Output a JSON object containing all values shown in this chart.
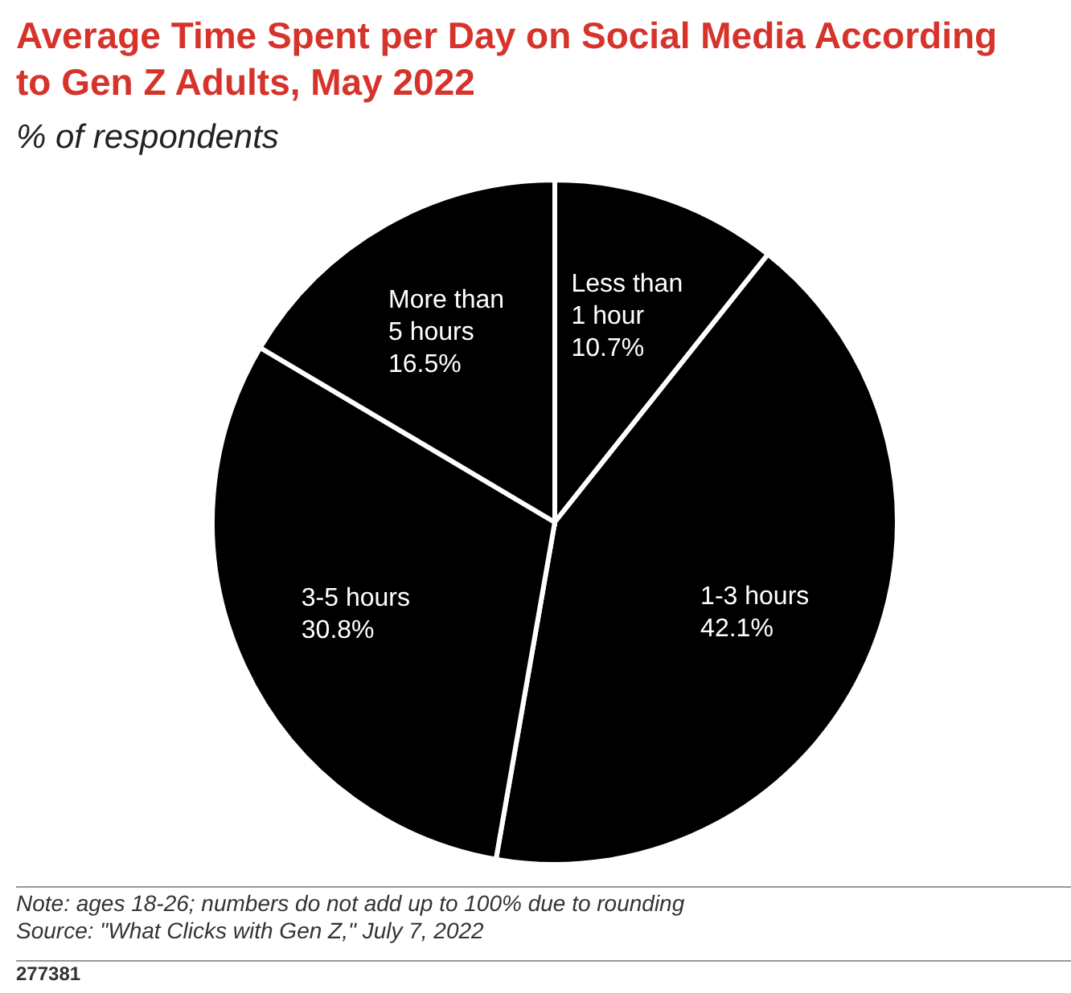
{
  "chart_data": {
    "type": "pie",
    "title": "Average Time Spent per Day on Social Media According to Gen Z Adults, May 2022",
    "subtitle": "% of respondents",
    "categories": [
      "Less than 1 hour",
      "1-3 hours",
      "3-5 hours",
      "More than 5 hours"
    ],
    "values": [
      10.7,
      42.1,
      30.8,
      16.5
    ],
    "value_labels": [
      "10.7%",
      "42.1%",
      "30.8%",
      "16.5%"
    ],
    "colors": [
      "#000000",
      "#000000",
      "#000000",
      "#000000"
    ],
    "annotations": [
      "Note: ages 18-26; numbers do not add up to 100% due to rounding",
      "Source: \"What Clicks with Gen Z,\" July 7, 2022",
      "277381"
    ]
  }
}
